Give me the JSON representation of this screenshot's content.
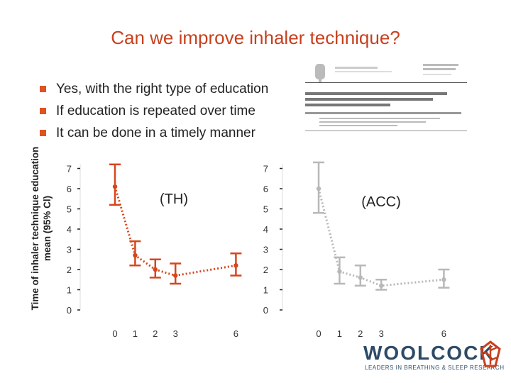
{
  "title": "Can we improve inhaler technique?",
  "bullets": [
    "Yes, with the right type of education",
    "If education is repeated over time",
    "It can be done in a timely manner"
  ],
  "y_axis_label_line1": "Time of inhaler technique education",
  "y_axis_label_line2": "mean (95% Cl)",
  "logo": {
    "word": "WOOLCOCK",
    "tagline": "LEADERS IN BREATHING & SLEEP RESEARCH"
  },
  "colors": {
    "accent": "#c8401e",
    "th_series": "#d6461c",
    "acc_series": "#b8b8b8",
    "bullet": "#e0521f",
    "logo": "#2d4a66"
  },
  "chart_data": [
    {
      "type": "line",
      "label": "(TH)",
      "x": [
        0,
        1,
        2,
        3,
        6
      ],
      "y": [
        6.1,
        2.7,
        2.0,
        1.7,
        2.2
      ],
      "ci_low": [
        5.2,
        2.2,
        1.6,
        1.3,
        1.7
      ],
      "ci_high": [
        7.2,
        3.4,
        2.5,
        2.3,
        2.8
      ],
      "xticks": [
        "0",
        "1",
        "2",
        "3",
        "6"
      ],
      "yticks": [
        "0",
        "1",
        "2",
        "3",
        "4",
        "5",
        "6",
        "7"
      ],
      "xlim": [
        0,
        6
      ],
      "ylim": [
        0,
        7
      ]
    },
    {
      "type": "line",
      "label": "(ACC)",
      "x": [
        0,
        1,
        2,
        3,
        6
      ],
      "y": [
        6.0,
        1.9,
        1.6,
        1.2,
        1.5
      ],
      "ci_low": [
        4.8,
        1.3,
        1.2,
        1.0,
        1.1
      ],
      "ci_high": [
        7.3,
        2.6,
        2.2,
        1.5,
        2.0
      ],
      "xticks": [
        "0",
        "1",
        "2",
        "3",
        "6"
      ],
      "yticks": [
        "0",
        "1",
        "2",
        "3",
        "4",
        "5",
        "6",
        "7"
      ],
      "xlim": [
        0,
        6
      ],
      "ylim": [
        0,
        7
      ]
    }
  ]
}
